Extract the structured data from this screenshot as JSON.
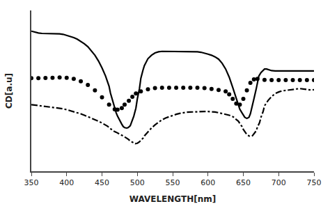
{
  "chart_data": {
    "type": "line",
    "xlabel": "WAVELENGTH[nm]",
    "ylabel": "CD[a.u]",
    "xlim": [
      350,
      750
    ],
    "xticks": [
      350,
      400,
      450,
      500,
      550,
      600,
      650,
      700,
      750
    ],
    "ylim": [
      -3.5,
      3.5
    ],
    "yticks": [],
    "tick_labels": "x",
    "grid": false,
    "color": "#ffffff",
    "series": [
      {
        "color": "#000000",
        "line_style": "solid",
        "x": [
          350,
          355,
          360,
          365,
          370,
          375,
          380,
          385,
          390,
          395,
          400,
          405,
          410,
          415,
          420,
          425,
          430,
          435,
          440,
          445,
          450,
          455,
          460,
          462,
          465,
          468,
          470,
          472,
          475,
          478,
          480,
          482,
          485,
          487,
          490,
          492,
          495,
          498,
          500,
          503,
          505,
          508,
          510,
          515,
          520,
          525,
          530,
          535,
          540,
          545,
          550,
          555,
          560,
          565,
          570,
          575,
          580,
          585,
          590,
          595,
          600,
          605,
          610,
          615,
          620,
          625,
          630,
          635,
          640,
          643,
          645,
          648,
          650,
          652,
          655,
          658,
          660,
          662,
          665,
          668,
          670,
          672,
          675,
          678,
          680,
          683,
          685,
          688,
          690,
          695,
          700,
          705,
          710,
          715,
          720,
          725,
          730,
          735,
          740,
          745,
          750
        ],
        "values": [
          2.6,
          2.55,
          2.52,
          2.5,
          2.5,
          2.5,
          2.5,
          2.5,
          2.48,
          2.46,
          2.42,
          2.38,
          2.32,
          2.25,
          2.15,
          2.05,
          1.92,
          1.75,
          1.55,
          1.3,
          1.0,
          0.65,
          0.2,
          -0.1,
          -0.45,
          -0.75,
          -0.95,
          -1.1,
          -1.3,
          -1.45,
          -1.55,
          -1.6,
          -1.62,
          -1.6,
          -1.52,
          -1.35,
          -1.1,
          -0.75,
          -0.35,
          0.1,
          0.55,
          0.9,
          1.1,
          1.4,
          1.55,
          1.65,
          1.7,
          1.72,
          1.72,
          1.72,
          1.72,
          1.72,
          1.72,
          1.72,
          1.72,
          1.72,
          1.72,
          1.7,
          1.68,
          1.65,
          1.6,
          1.55,
          1.48,
          1.38,
          1.2,
          0.95,
          0.6,
          0.15,
          -0.3,
          -0.6,
          -0.8,
          -0.95,
          -1.05,
          -1.15,
          -1.2,
          -1.15,
          -1.0,
          -0.7,
          -0.35,
          0.05,
          0.4,
          0.65,
          0.8,
          0.9,
          0.95,
          0.95,
          0.93,
          0.9,
          0.88,
          0.87,
          0.87,
          0.87,
          0.87,
          0.87,
          0.87,
          0.87,
          0.87,
          0.87,
          0.87,
          0.87,
          0.87
        ]
      },
      {
        "color": "#000000",
        "line_style": "none",
        "marker": "circle",
        "x": [
          350,
          360,
          370,
          380,
          390,
          400,
          410,
          420,
          430,
          440,
          450,
          460,
          468,
          472,
          478,
          482,
          488,
          493,
          498,
          505,
          515,
          525,
          535,
          545,
          555,
          565,
          575,
          585,
          595,
          605,
          615,
          625,
          630,
          635,
          640,
          645,
          650,
          655,
          660,
          665,
          670,
          680,
          690,
          700,
          710,
          720,
          730,
          740,
          750
        ],
        "values": [
          0.55,
          0.55,
          0.56,
          0.57,
          0.58,
          0.57,
          0.52,
          0.42,
          0.26,
          0.02,
          -0.28,
          -0.6,
          -0.8,
          -0.82,
          -0.75,
          -0.6,
          -0.43,
          -0.26,
          -0.11,
          -0.02,
          0.07,
          0.12,
          0.14,
          0.14,
          0.14,
          0.14,
          0.14,
          0.14,
          0.12,
          0.08,
          0.04,
          -0.02,
          -0.15,
          -0.35,
          -0.55,
          -0.6,
          -0.35,
          0.02,
          0.35,
          0.5,
          0.52,
          0.48,
          0.47,
          0.47,
          0.47,
          0.47,
          0.47,
          0.47,
          0.47
        ]
      },
      {
        "color": "#000000",
        "line_style": "dashdot",
        "x": [
          350,
          355,
          360,
          365,
          370,
          375,
          380,
          385,
          390,
          395,
          400,
          405,
          410,
          415,
          420,
          425,
          430,
          435,
          440,
          445,
          450,
          455,
          458,
          460,
          463,
          465,
          467,
          470,
          472,
          475,
          477,
          480,
          482,
          485,
          487,
          490,
          492,
          495,
          497,
          500,
          503,
          505,
          508,
          510,
          515,
          520,
          525,
          530,
          535,
          540,
          545,
          550,
          555,
          560,
          565,
          570,
          575,
          580,
          585,
          590,
          595,
          600,
          605,
          610,
          615,
          620,
          625,
          630,
          635,
          638,
          640,
          643,
          645,
          648,
          650,
          653,
          655,
          658,
          660,
          663,
          665,
          668,
          670,
          673,
          675,
          678,
          680,
          685,
          690,
          695,
          700,
          705,
          710,
          715,
          720,
          725,
          730,
          735,
          740,
          745,
          750
        ],
        "values": [
          -0.6,
          -0.62,
          -0.63,
          -0.64,
          -0.66,
          -0.68,
          -0.7,
          -0.72,
          -0.75,
          -0.78,
          -0.82,
          -0.86,
          -0.9,
          -0.95,
          -1.0,
          -1.06,
          -1.12,
          -1.18,
          -1.25,
          -1.32,
          -1.4,
          -1.48,
          -1.54,
          -1.6,
          -1.67,
          -1.72,
          -1.76,
          -1.8,
          -1.84,
          -1.88,
          -1.92,
          -1.96,
          -2.0,
          -2.05,
          -2.1,
          -2.18,
          -2.22,
          -2.28,
          -2.3,
          -2.28,
          -2.22,
          -2.15,
          -2.06,
          -1.96,
          -1.78,
          -1.62,
          -1.48,
          -1.36,
          -1.26,
          -1.18,
          -1.12,
          -1.06,
          -1.02,
          -0.98,
          -0.95,
          -0.93,
          -0.92,
          -0.91,
          -0.9,
          -0.9,
          -0.9,
          -0.9,
          -0.9,
          -0.92,
          -0.95,
          -0.98,
          -1.02,
          -1.06,
          -1.12,
          -1.18,
          -1.25,
          -1.32,
          -1.42,
          -1.55,
          -1.68,
          -1.8,
          -1.9,
          -1.96,
          -1.98,
          -1.95,
          -1.88,
          -1.75,
          -1.58,
          -1.38,
          -1.15,
          -0.9,
          -0.65,
          -0.42,
          -0.25,
          -0.12,
          -0.05,
          -0.0,
          0.02,
          0.04,
          0.06,
          0.08,
          0.1,
          0.08,
          0.06,
          0.04,
          0.05
        ]
      }
    ]
  }
}
